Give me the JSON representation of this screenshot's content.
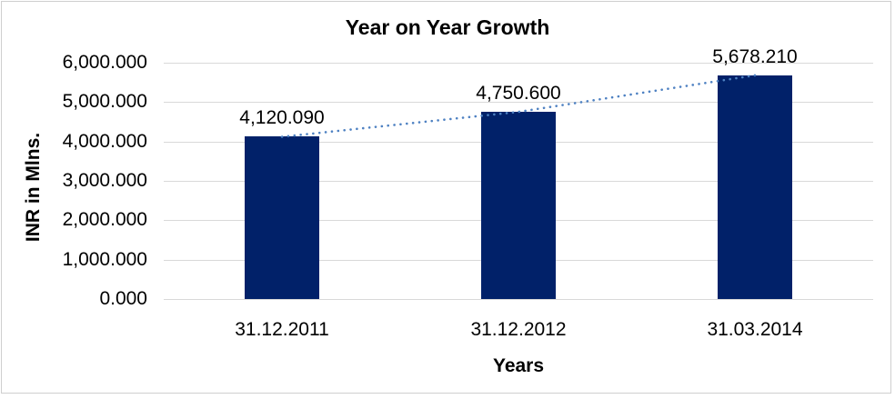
{
  "chart_data": {
    "type": "bar",
    "title": "Year on Year Growth",
    "xlabel": "Years",
    "ylabel": "INR in Mlns.",
    "categories": [
      "31.12.2011",
      "31.12.2012",
      "31.03.2014"
    ],
    "series": [
      {
        "name": "INR in Mlns.",
        "values": [
          4120.09,
          4750.6,
          5678.21
        ]
      }
    ],
    "data_labels": [
      "4,120.090",
      "4,750.600",
      "5,678.210"
    ],
    "ylim": [
      0,
      6000
    ],
    "ytick_step": 1000,
    "ytick_labels": [
      "0.000",
      "1,000.000",
      "2,000.000",
      "3,000.000",
      "4,000.000",
      "5,000.000",
      "6,000.000"
    ],
    "grid": true,
    "legend": "none",
    "trendline": true,
    "colors": {
      "bar": "#012169",
      "trendline": "#4e81c2",
      "gridline": "#d9d9d9",
      "text": "#000000",
      "frame": "#cfcfcf"
    }
  }
}
